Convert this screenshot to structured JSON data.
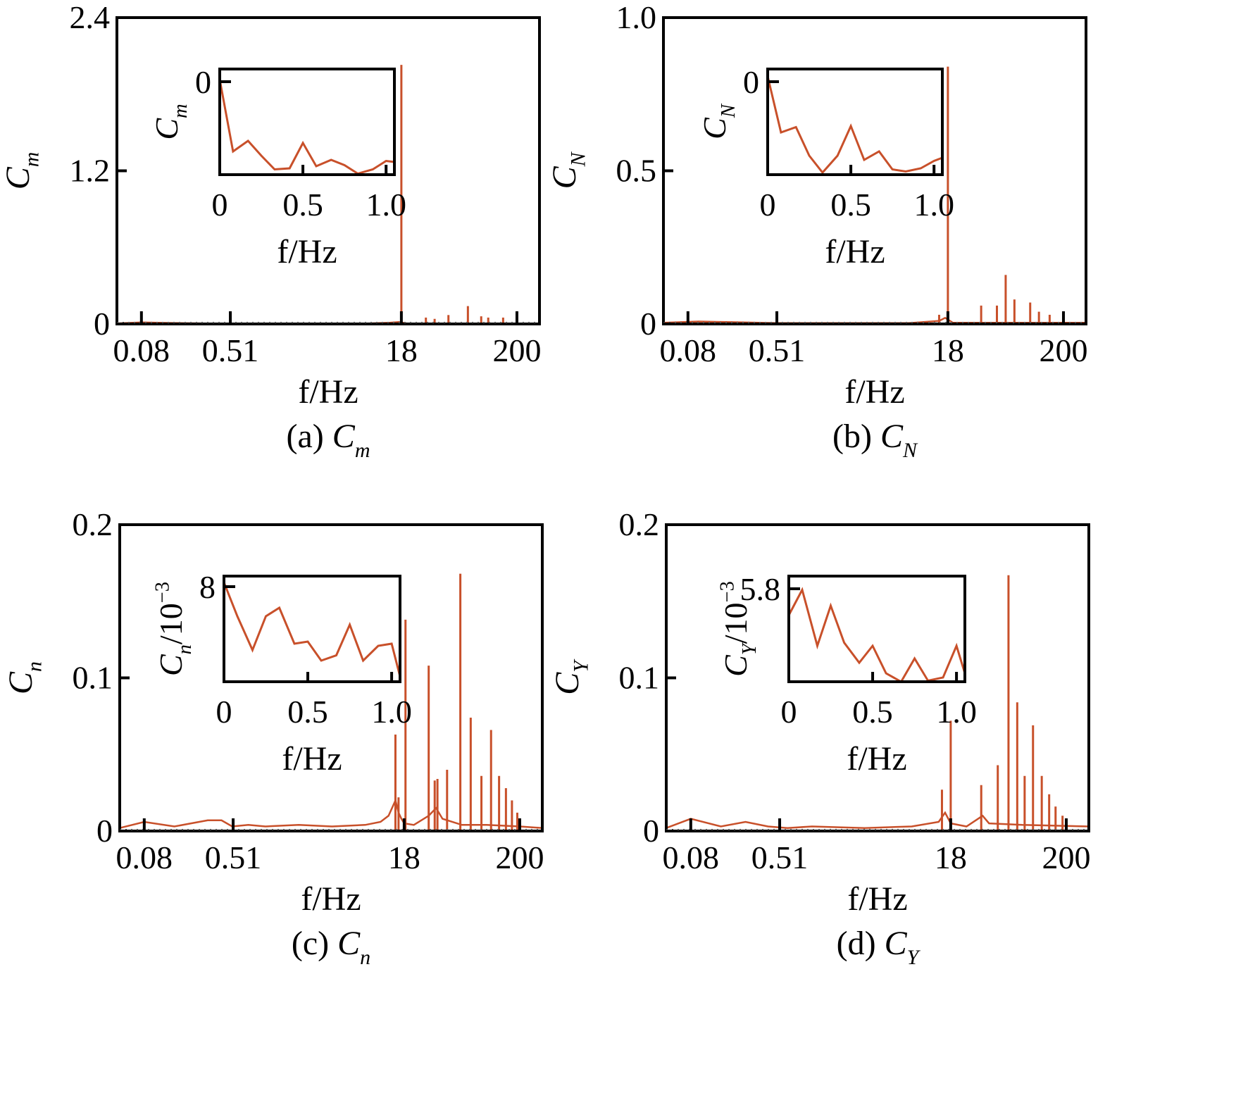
{
  "figure": {
    "style": {
      "line_color": "#c8502a",
      "axis_color": "#000000",
      "background": "#ffffff"
    }
  },
  "chart_data": [
    {
      "id": "a",
      "type": "line",
      "x_scale": "log",
      "xlabel": "f/Hz",
      "ylabel": {
        "base": "C",
        "sub": "m"
      },
      "caption": {
        "label": "(a)",
        "var": "C",
        "sub": "m"
      },
      "ylim": [
        0,
        2.4
      ],
      "yticks": [
        0,
        1.2,
        2.4
      ],
      "ytick_labels": [
        "0",
        "1.2",
        "2.4"
      ],
      "xlim": [
        0.048,
        320
      ],
      "xticks": [
        0.08,
        0.51,
        18,
        200
      ],
      "xtick_labels": [
        "0.08",
        "0.51",
        "18",
        "200"
      ],
      "series": {
        "baseline": [
          [
            0.048,
            0.004
          ],
          [
            0.08,
            0.012
          ],
          [
            0.15,
            0.008
          ],
          [
            0.3,
            0.004
          ],
          [
            1,
            0.003
          ],
          [
            3,
            0.003
          ],
          [
            8,
            0.003
          ],
          [
            14,
            0.01
          ],
          [
            17,
            0.015
          ],
          [
            20,
            0.005
          ],
          [
            100,
            0.004
          ],
          [
            320,
            0.004
          ]
        ],
        "spikes": [
          [
            18,
            2.03
          ],
          [
            30,
            0.05
          ],
          [
            36,
            0.04
          ],
          [
            48,
            0.07
          ],
          [
            72,
            0.14
          ],
          [
            95,
            0.06
          ],
          [
            110,
            0.05
          ],
          [
            150,
            0.05
          ]
        ]
      },
      "inset": {
        "ylabel": {
          "base": "C",
          "sub": "m"
        },
        "xlabel": "f/Hz",
        "xlim": [
          0,
          1.05
        ],
        "ylim": [
          0,
          1
        ],
        "xticks": [
          0,
          0.5,
          1.0
        ],
        "xtick_labels": [
          "0",
          "0.5",
          "1.0"
        ],
        "ytick_value": 0.88,
        "ytick_label": "0",
        "points": [
          [
            0,
            0.9
          ],
          [
            0.08,
            0.22
          ],
          [
            0.17,
            0.32
          ],
          [
            0.25,
            0.18
          ],
          [
            0.33,
            0.05
          ],
          [
            0.42,
            0.06
          ],
          [
            0.5,
            0.3
          ],
          [
            0.58,
            0.08
          ],
          [
            0.67,
            0.14
          ],
          [
            0.75,
            0.09
          ],
          [
            0.83,
            0.01
          ],
          [
            0.92,
            0.05
          ],
          [
            1.0,
            0.13
          ],
          [
            1.05,
            0.12
          ]
        ]
      }
    },
    {
      "id": "b",
      "type": "line",
      "x_scale": "log",
      "xlabel": "f/Hz",
      "ylabel": {
        "base": "C",
        "sub": "N"
      },
      "caption": {
        "label": "(b)",
        "var": "C",
        "sub": "N"
      },
      "ylim": [
        0,
        1.0
      ],
      "yticks": [
        0,
        0.5,
        1.0
      ],
      "ytick_labels": [
        "0",
        "0.5",
        "1.0"
      ],
      "xlim": [
        0.048,
        320
      ],
      "xticks": [
        0.08,
        0.51,
        18,
        200
      ],
      "xtick_labels": [
        "0.08",
        "0.51",
        "18",
        "200"
      ],
      "series": {
        "baseline": [
          [
            0.048,
            0.004
          ],
          [
            0.1,
            0.008
          ],
          [
            0.2,
            0.006
          ],
          [
            0.5,
            0.003
          ],
          [
            2,
            0.003
          ],
          [
            8,
            0.003
          ],
          [
            15,
            0.01
          ],
          [
            17,
            0.02
          ],
          [
            20,
            0.004
          ],
          [
            100,
            0.004
          ],
          [
            320,
            0.004
          ]
        ],
        "spikes": [
          [
            18,
            0.84
          ],
          [
            15,
            0.03
          ],
          [
            36,
            0.06
          ],
          [
            50,
            0.06
          ],
          [
            60,
            0.16
          ],
          [
            72,
            0.08
          ],
          [
            100,
            0.07
          ],
          [
            120,
            0.04
          ],
          [
            150,
            0.03
          ]
        ]
      },
      "inset": {
        "ylabel": {
          "base": "C",
          "sub": "N"
        },
        "xlabel": "f/Hz",
        "xlim": [
          0,
          1.05
        ],
        "ylim": [
          0,
          1
        ],
        "xticks": [
          0,
          0.5,
          1.0
        ],
        "xtick_labels": [
          "0",
          "0.5",
          "1.0"
        ],
        "ytick_value": 0.88,
        "ytick_label": "0",
        "points": [
          [
            0,
            0.93
          ],
          [
            0.08,
            0.4
          ],
          [
            0.17,
            0.45
          ],
          [
            0.25,
            0.18
          ],
          [
            0.33,
            0.02
          ],
          [
            0.42,
            0.18
          ],
          [
            0.5,
            0.46
          ],
          [
            0.58,
            0.14
          ],
          [
            0.67,
            0.22
          ],
          [
            0.75,
            0.05
          ],
          [
            0.83,
            0.03
          ],
          [
            0.92,
            0.06
          ],
          [
            1.0,
            0.13
          ],
          [
            1.05,
            0.16
          ]
        ]
      }
    },
    {
      "id": "c",
      "type": "line",
      "x_scale": "log",
      "xlabel": "f/Hz",
      "ylabel": {
        "base": "C",
        "sub": "n"
      },
      "caption": {
        "label": "(c)",
        "var": "C",
        "sub": "n"
      },
      "ylim": [
        0,
        0.2
      ],
      "yticks": [
        0,
        0.1,
        0.2
      ],
      "ytick_labels": [
        "0",
        "0.1",
        "0.2"
      ],
      "xlim": [
        0.048,
        320
      ],
      "xticks": [
        0.08,
        0.51,
        18,
        200
      ],
      "xtick_labels": [
        "0.08",
        "0.51",
        "18",
        "200"
      ],
      "series": {
        "baseline": [
          [
            0.048,
            0.002
          ],
          [
            0.08,
            0.006
          ],
          [
            0.15,
            0.003
          ],
          [
            0.3,
            0.007
          ],
          [
            0.4,
            0.007
          ],
          [
            0.5,
            0.003
          ],
          [
            0.7,
            0.004
          ],
          [
            1,
            0.003
          ],
          [
            2,
            0.004
          ],
          [
            4,
            0.003
          ],
          [
            8,
            0.004
          ],
          [
            11,
            0.006
          ],
          [
            13,
            0.01
          ],
          [
            15,
            0.02
          ],
          [
            16,
            0.012
          ],
          [
            17,
            0.008
          ],
          [
            18,
            0.005
          ],
          [
            22,
            0.004
          ],
          [
            30,
            0.01
          ],
          [
            35,
            0.015
          ],
          [
            40,
            0.008
          ],
          [
            60,
            0.004
          ],
          [
            100,
            0.004
          ],
          [
            200,
            0.003
          ],
          [
            320,
            0.002
          ]
        ],
        "spikes": [
          [
            15,
            0.063
          ],
          [
            16,
            0.022
          ],
          [
            18.5,
            0.138
          ],
          [
            30,
            0.108
          ],
          [
            34,
            0.033
          ],
          [
            36,
            0.034
          ],
          [
            44,
            0.04
          ],
          [
            58,
            0.168
          ],
          [
            72,
            0.074
          ],
          [
            90,
            0.036
          ],
          [
            110,
            0.066
          ],
          [
            130,
            0.036
          ],
          [
            150,
            0.028
          ],
          [
            170,
            0.02
          ],
          [
            190,
            0.012
          ]
        ]
      },
      "inset": {
        "ylabel": {
          "base": "C",
          "sub": "n",
          "suffix": "/10",
          "sup": "−3"
        },
        "xlabel": "f/Hz",
        "xlim": [
          0,
          1.05
        ],
        "ylim": [
          0,
          1
        ],
        "xticks": [
          0,
          0.5,
          1.0
        ],
        "xtick_labels": [
          "0",
          "0.5",
          "1.0"
        ],
        "ytick_value": 0.9,
        "ytick_label": "8",
        "points": [
          [
            0,
            0.94
          ],
          [
            0.08,
            0.62
          ],
          [
            0.17,
            0.3
          ],
          [
            0.25,
            0.62
          ],
          [
            0.33,
            0.7
          ],
          [
            0.42,
            0.36
          ],
          [
            0.5,
            0.38
          ],
          [
            0.58,
            0.2
          ],
          [
            0.67,
            0.25
          ],
          [
            0.75,
            0.54
          ],
          [
            0.83,
            0.2
          ],
          [
            0.92,
            0.34
          ],
          [
            1.0,
            0.36
          ],
          [
            1.05,
            0.05
          ]
        ]
      }
    },
    {
      "id": "d",
      "type": "line",
      "x_scale": "log",
      "xlabel": "f/Hz",
      "ylabel": {
        "base": "C",
        "sub": "Y"
      },
      "caption": {
        "label": "(d)",
        "var": "C",
        "sub": "Y"
      },
      "ylim": [
        0,
        0.2
      ],
      "yticks": [
        0,
        0.1,
        0.2
      ],
      "ytick_labels": [
        "0",
        "0.1",
        "0.2"
      ],
      "xlim": [
        0.048,
        320
      ],
      "xticks": [
        0.08,
        0.51,
        18,
        200
      ],
      "xtick_labels": [
        "0.08",
        "0.51",
        "18",
        "200"
      ],
      "series": {
        "baseline": [
          [
            0.048,
            0.002
          ],
          [
            0.08,
            0.008
          ],
          [
            0.15,
            0.003
          ],
          [
            0.25,
            0.006
          ],
          [
            0.4,
            0.003
          ],
          [
            0.6,
            0.002
          ],
          [
            1,
            0.003
          ],
          [
            3,
            0.002
          ],
          [
            8,
            0.003
          ],
          [
            14,
            0.006
          ],
          [
            16,
            0.012
          ],
          [
            18,
            0.005
          ],
          [
            25,
            0.003
          ],
          [
            35,
            0.01
          ],
          [
            40,
            0.005
          ],
          [
            80,
            0.004
          ],
          [
            320,
            0.003
          ]
        ],
        "spikes": [
          [
            15,
            0.027
          ],
          [
            18,
            0.072
          ],
          [
            34,
            0.03
          ],
          [
            48,
            0.043
          ],
          [
            60,
            0.167
          ],
          [
            72,
            0.084
          ],
          [
            84,
            0.036
          ],
          [
            100,
            0.069
          ],
          [
            120,
            0.036
          ],
          [
            140,
            0.024
          ],
          [
            160,
            0.016
          ],
          [
            185,
            0.01
          ]
        ]
      },
      "inset": {
        "ylabel": {
          "base": "C",
          "sub": "Y",
          "suffix": "/10",
          "sup": "−3"
        },
        "xlabel": "f/Hz",
        "xlim": [
          0,
          1.05
        ],
        "ylim": [
          0,
          1
        ],
        "xticks": [
          0,
          0.5,
          1.0
        ],
        "xtick_labels": [
          "0",
          "0.5",
          "1.0"
        ],
        "ytick_value": 0.88,
        "ytick_label": "5.8",
        "points": [
          [
            0,
            0.63
          ],
          [
            0.08,
            0.87
          ],
          [
            0.17,
            0.34
          ],
          [
            0.25,
            0.72
          ],
          [
            0.33,
            0.37
          ],
          [
            0.42,
            0.18
          ],
          [
            0.5,
            0.34
          ],
          [
            0.58,
            0.08
          ],
          [
            0.67,
            0.0
          ],
          [
            0.75,
            0.22
          ],
          [
            0.83,
            0.01
          ],
          [
            0.92,
            0.04
          ],
          [
            1.0,
            0.34
          ],
          [
            1.05,
            0.08
          ]
        ]
      }
    }
  ]
}
